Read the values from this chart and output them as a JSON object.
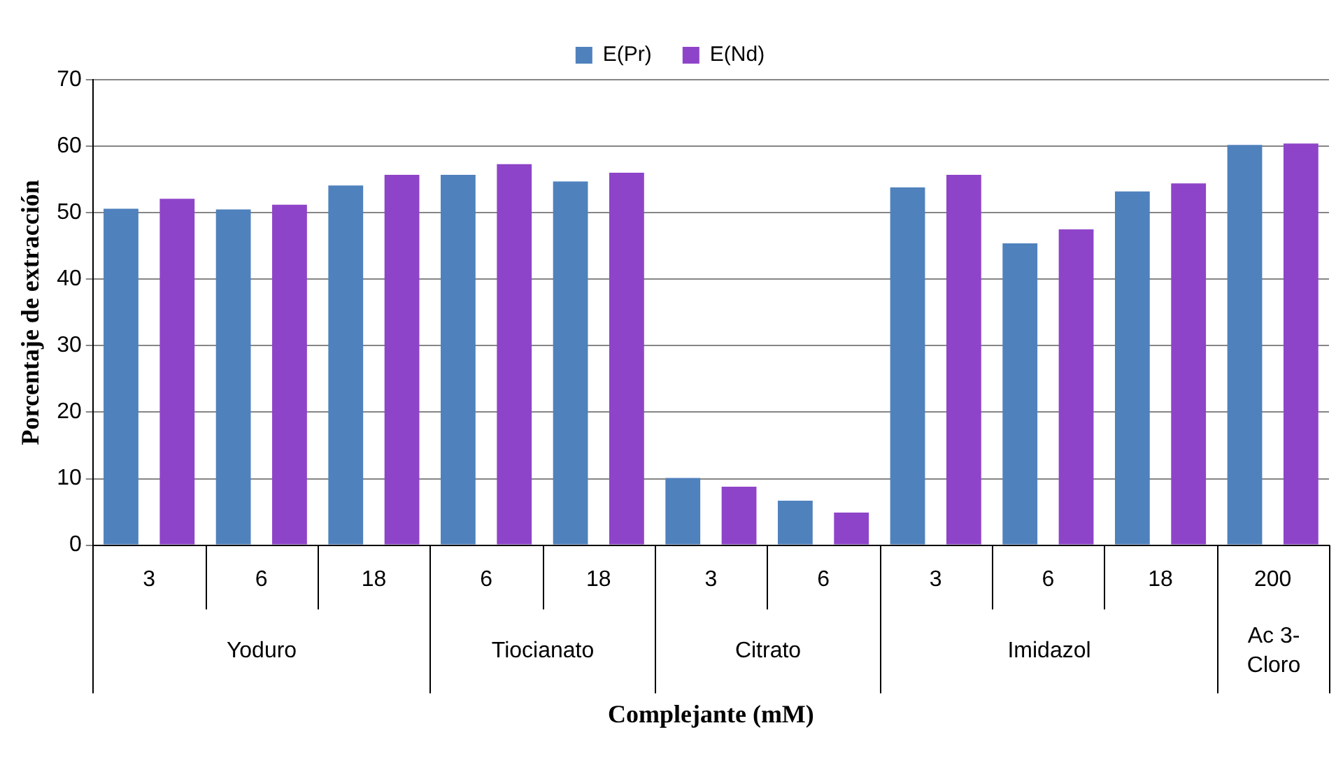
{
  "chart_data": {
    "type": "bar",
    "xlabel": "Complejante (mM)",
    "ylabel": "Porcentaje de extracción",
    "categories": [
      "3",
      "6",
      "18",
      "6",
      "18",
      "3",
      "6",
      "3",
      "6",
      "18",
      "200"
    ],
    "series": [
      {
        "name": "E(Pr)",
        "color": "#4f81bd",
        "values": [
          50.6,
          50.5,
          54.1,
          55.7,
          54.7,
          10.1,
          6.7,
          53.8,
          45.4,
          53.2,
          60.2
        ]
      },
      {
        "name": "E(Nd)",
        "color": "#8e44c8",
        "values": [
          52.1,
          51.2,
          55.7,
          57.3,
          56.0,
          8.8,
          4.9,
          55.7,
          47.5,
          54.4,
          60.4
        ]
      }
    ],
    "annotations": [
      "Yoduro",
      "Tiocianato",
      "Citrato",
      "Imidazol",
      "Ac 3-Cloro"
    ],
    "ylim": [
      0,
      70
    ],
    "yticks": [
      0,
      10,
      20,
      30,
      40,
      50,
      60,
      70
    ],
    "grid": "y",
    "legend": "top"
  }
}
